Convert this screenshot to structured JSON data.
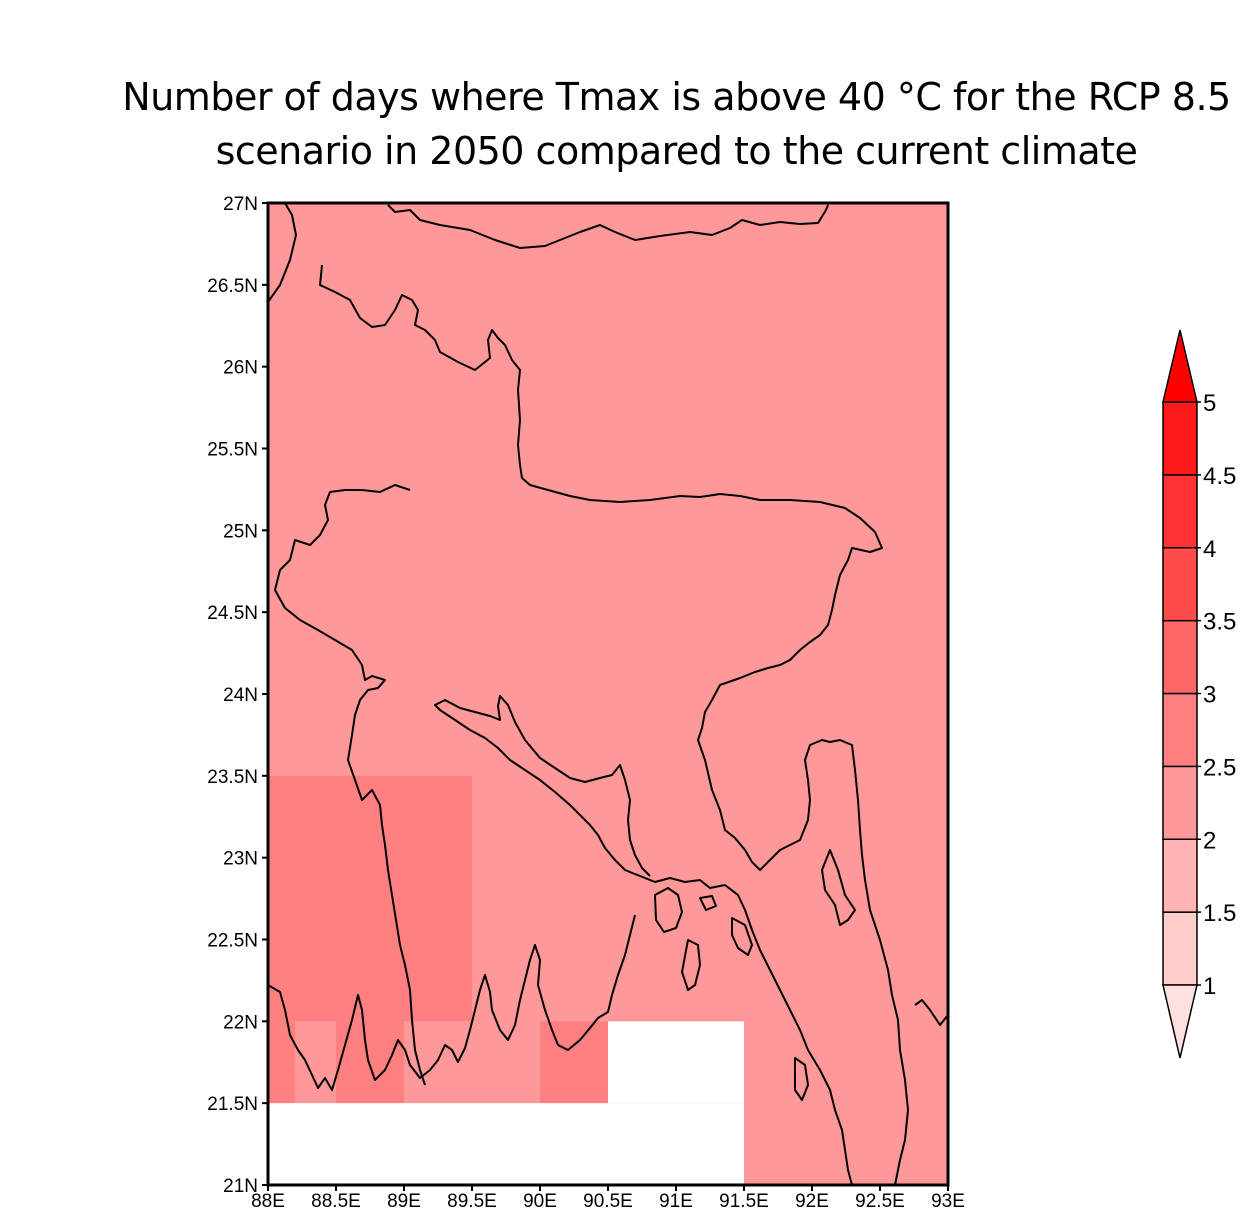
{
  "chart_data": {
    "type": "heatmap",
    "title_line1": "Number of days where Tmax is above 40 °C for the RCP 8.5",
    "title_line2": "scenario in 2050 compared to the current climate",
    "xlim": [
      88,
      93
    ],
    "ylim": [
      21,
      27
    ],
    "x_ticks": [
      "88E",
      "88.5E",
      "89E",
      "89.5E",
      "90E",
      "90.5E",
      "91E",
      "91.5E",
      "92E",
      "92.5E",
      "93E"
    ],
    "y_ticks": [
      "21N",
      "21.5N",
      "22N",
      "22.5N",
      "23N",
      "23.5N",
      "24N",
      "24.5N",
      "25N",
      "25.5N",
      "26N",
      "26.5N",
      "27N"
    ],
    "background_value": 2.25,
    "cells": [
      {
        "lon": [
          88.0,
          89.5
        ],
        "lat": [
          22.0,
          23.5
        ],
        "value": 2.75
      },
      {
        "lon": [
          88.0,
          88.2
        ],
        "lat": [
          21.5,
          22.0
        ],
        "value": 2.75
      },
      {
        "lon": [
          88.2,
          89.0
        ],
        "lat": [
          21.5,
          22.0
        ],
        "value": 2.25
      },
      {
        "lon": [
          88.5,
          89.0
        ],
        "lat": [
          21.5,
          22.0
        ],
        "value": 2.75
      },
      {
        "lon": [
          89.0,
          90.0
        ],
        "lat": [
          21.5,
          22.0
        ],
        "value": 2.25
      },
      {
        "lon": [
          90.0,
          90.5
        ],
        "lat": [
          21.5,
          22.0
        ],
        "value": 2.75
      },
      {
        "lon": [
          88.0,
          91.5
        ],
        "lat": [
          21.0,
          21.5
        ],
        "value": null
      },
      {
        "lon": [
          90.5,
          91.5
        ],
        "lat": [
          21.5,
          22.0
        ],
        "value": null
      }
    ],
    "colorbar": {
      "levels": [
        "1",
        "1.5",
        "2",
        "2.5",
        "3",
        "3.5",
        "4",
        "4.5",
        "5"
      ],
      "colors": [
        "#FFE0E0",
        "#FFCCCC",
        "#FFB3B3",
        "#FF9999",
        "#FF8080",
        "#FF6666",
        "#FF4D4D",
        "#FF3333",
        "#FF1A1A",
        "#FF0000"
      ],
      "extend": "both"
    }
  }
}
